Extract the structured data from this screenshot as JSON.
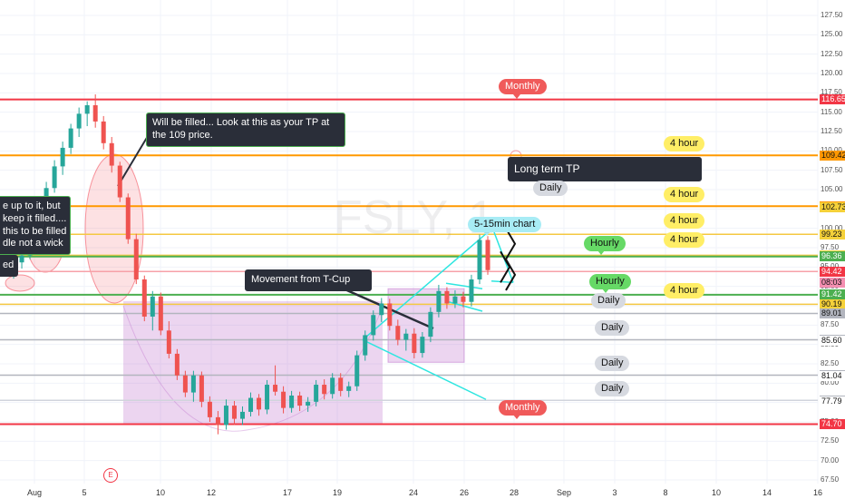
{
  "chart_data": {
    "type": "candlestick",
    "symbol_watermark": "FSLY, 1",
    "y_ticks": [
      127.5,
      125.0,
      122.5,
      120.0,
      117.5,
      115.0,
      112.5,
      110.0,
      107.5,
      105.0,
      102.5,
      100.0,
      97.5,
      95.0,
      92.5,
      90.0,
      87.5,
      85.0,
      82.5,
      80.0,
      77.5,
      75.0,
      72.5,
      70.0,
      67.5
    ],
    "x_ticks": [
      "Aug",
      "5",
      "10",
      "12",
      "17",
      "19",
      "24",
      "26",
      "28",
      "Sep",
      "3",
      "8",
      "10",
      "14",
      "16"
    ],
    "price_labels": [
      {
        "value": "116.65",
        "kind": "red"
      },
      {
        "value": "109.42",
        "kind": "orange"
      },
      {
        "value": "102.86",
        "kind": "orange"
      },
      {
        "value": "102.73",
        "kind": "yellow"
      },
      {
        "value": "99.23",
        "kind": "yellow"
      },
      {
        "value": "96.52",
        "kind": "yellow"
      },
      {
        "value": "96.36",
        "kind": "green"
      },
      {
        "value": "94.42",
        "kind": "red"
      },
      {
        "value": "08:03",
        "kind": "red-light"
      },
      {
        "value": "91.42",
        "kind": "green"
      },
      {
        "value": "90.19",
        "kind": "yellow"
      },
      {
        "value": "89.01",
        "kind": "gray"
      },
      {
        "value": "85.60",
        "kind": "gray-line"
      },
      {
        "value": "81.04",
        "kind": "gray-line"
      },
      {
        "value": "77.79",
        "kind": "gray-line"
      },
      {
        "value": "74.70",
        "kind": "red"
      }
    ],
    "horizontal_levels": [
      {
        "price": 116.65,
        "color": "#f23645"
      },
      {
        "price": 109.42,
        "color": "#ff9800"
      },
      {
        "price": 102.86,
        "color": "#ff9800"
      },
      {
        "price": 99.23,
        "color": "#f5c842"
      },
      {
        "price": 96.52,
        "color": "#f5c842"
      },
      {
        "price": 96.36,
        "color": "#4caf50"
      },
      {
        "price": 94.42,
        "color": "#f7a1a8"
      },
      {
        "price": 91.42,
        "color": "#4caf50"
      },
      {
        "price": 90.19,
        "color": "#f5c842"
      },
      {
        "price": 89.01,
        "color": "#b2b5be"
      },
      {
        "price": 85.6,
        "color": "#b2b5be"
      },
      {
        "price": 81.04,
        "color": "#b2b5be"
      },
      {
        "price": 77.79,
        "color": "#d1d4dc"
      },
      {
        "price": 74.7,
        "color": "#f23645"
      }
    ],
    "candles_ohlc": [
      [
        96.0,
        97.5,
        94.0,
        94.8
      ],
      [
        94.8,
        96.2,
        93.5,
        95.6
      ],
      [
        95.6,
        97.0,
        94.8,
        96.5
      ],
      [
        96.5,
        99.0,
        96.0,
        98.4
      ],
      [
        98.4,
        102.0,
        97.5,
        101.5
      ],
      [
        101.5,
        106.0,
        100.8,
        105.2
      ],
      [
        105.2,
        108.8,
        104.6,
        108.0
      ],
      [
        108.0,
        111.2,
        106.9,
        110.4
      ],
      [
        110.4,
        113.5,
        109.6,
        112.9
      ],
      [
        112.9,
        115.6,
        111.8,
        114.8
      ],
      [
        114.8,
        116.4,
        113.2,
        115.9
      ],
      [
        115.9,
        117.3,
        113.0,
        113.8
      ],
      [
        113.8,
        114.5,
        110.2,
        111.0
      ],
      [
        111.0,
        111.8,
        107.2,
        108.1
      ],
      [
        108.1,
        108.6,
        103.4,
        104.0
      ],
      [
        104.0,
        104.5,
        98.0,
        98.6
      ],
      [
        98.6,
        99.3,
        92.8,
        93.4
      ],
      [
        93.4,
        93.9,
        88.0,
        88.6
      ],
      [
        88.6,
        91.9,
        86.8,
        91.2
      ],
      [
        91.2,
        91.7,
        86.2,
        86.8
      ],
      [
        86.8,
        88.0,
        83.2,
        83.8
      ],
      [
        83.8,
        84.4,
        80.4,
        81.0
      ],
      [
        81.0,
        81.6,
        78.2,
        78.8
      ],
      [
        78.8,
        81.6,
        77.6,
        81.0
      ],
      [
        81.0,
        81.5,
        76.9,
        77.6
      ],
      [
        77.6,
        78.3,
        75.0,
        75.6
      ],
      [
        75.6,
        76.4,
        73.4,
        74.6
      ],
      [
        74.6,
        77.9,
        74.0,
        77.1
      ],
      [
        77.1,
        77.7,
        74.6,
        75.4
      ],
      [
        75.4,
        77.0,
        74.6,
        76.3
      ],
      [
        76.3,
        78.8,
        75.7,
        78.1
      ],
      [
        78.1,
        78.6,
        75.8,
        76.6
      ],
      [
        76.6,
        80.4,
        76.0,
        79.8
      ],
      [
        79.8,
        82.3,
        78.4,
        78.9
      ],
      [
        78.9,
        79.6,
        76.1,
        76.8
      ],
      [
        76.8,
        79.0,
        76.2,
        78.4
      ],
      [
        78.4,
        78.9,
        76.4,
        77.1
      ],
      [
        77.1,
        78.2,
        76.3,
        77.6
      ],
      [
        77.6,
        80.4,
        77.0,
        79.8
      ],
      [
        79.8,
        80.5,
        77.9,
        78.6
      ],
      [
        78.6,
        81.3,
        78.0,
        80.7
      ],
      [
        80.7,
        81.3,
        78.3,
        79.0
      ],
      [
        79.0,
        80.2,
        78.2,
        79.6
      ],
      [
        79.6,
        84.2,
        79.0,
        83.6
      ],
      [
        83.6,
        86.8,
        82.9,
        86.2
      ],
      [
        86.2,
        89.4,
        85.5,
        88.8
      ],
      [
        88.8,
        91.0,
        87.9,
        90.3
      ],
      [
        90.3,
        90.9,
        86.8,
        87.4
      ],
      [
        87.4,
        88.2,
        84.9,
        85.6
      ],
      [
        85.6,
        87.0,
        84.2,
        86.4
      ],
      [
        86.4,
        87.1,
        83.2,
        83.9
      ],
      [
        83.9,
        86.6,
        83.3,
        86.0
      ],
      [
        86.0,
        89.8,
        85.3,
        89.2
      ],
      [
        89.2,
        92.7,
        88.5,
        91.9
      ],
      [
        91.9,
        92.4,
        89.6,
        90.3
      ],
      [
        90.3,
        92.0,
        89.7,
        91.2
      ],
      [
        91.2,
        91.8,
        89.8,
        90.5
      ],
      [
        90.5,
        94.0,
        89.9,
        93.4
      ],
      [
        93.4,
        99.2,
        92.8,
        98.5
      ],
      [
        98.5,
        99.0,
        94.0,
        94.6
      ]
    ]
  },
  "annotations": {
    "box_tp": "Will be filled... Look at this as your TP at the 109 price.",
    "box_left": "e up to it, but\nkeep it filled....\nthis to be filled\ndle not a wick",
    "box_left_small": "ed",
    "box_tcup": "Movement from T-Cup",
    "box_long_tp": "Long term TP",
    "pill_5_15": "5-15min chart",
    "pill_monthly_top": "Monthly",
    "pill_monthly_bottom": "Monthly",
    "pill_daily_1": "Daily",
    "pill_daily_2": "Daily",
    "pill_daily_3": "Daily",
    "pill_daily_4": "Daily",
    "pill_daily_5": "Daily",
    "pill_hourly_1": "Hourly",
    "pill_hourly_2": "Hourly",
    "pill_4hour_1": "4 hour",
    "pill_4hour_2": "4 hour",
    "pill_4hour_3": "4 hour",
    "pill_4hour_4": "4 hour",
    "pill_4hour_5": "4 hour",
    "earnings_marker": "E"
  },
  "colors": {
    "up_candle": "#26a69a",
    "down_candle": "#ef5350",
    "monthly": "#f05a5a",
    "daily": "#cfd2da",
    "hourly": "#66d966",
    "four_hour": "#ffee66",
    "five_min": "#a8ecf5"
  }
}
